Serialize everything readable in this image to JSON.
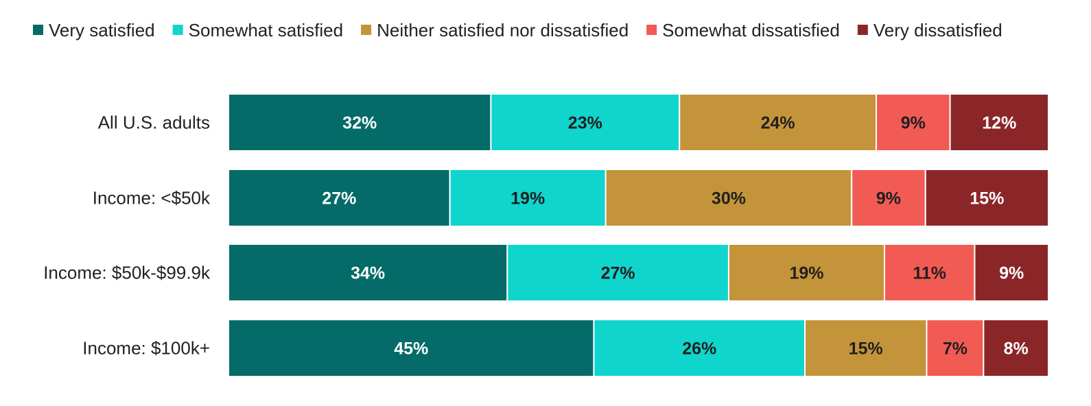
{
  "chart_data": {
    "type": "bar",
    "orientation": "horizontal",
    "stacked": true,
    "title": "",
    "xlabel": "",
    "ylabel": "",
    "categories": [
      "All U.S. adults",
      "Income: <$50k",
      "Income: $50k-$99.9k",
      "Income: $100k+"
    ],
    "series": [
      {
        "name": "Very satisfied",
        "color": "#046b68",
        "label_color": "#ffffff",
        "values": [
          32,
          27,
          34,
          45
        ]
      },
      {
        "name": "Somewhat satisfied",
        "color": "#10d5cc",
        "label_color": "#1f1f1f",
        "values": [
          23,
          19,
          27,
          26
        ]
      },
      {
        "name": "Neither satisfied nor dissatisfied",
        "color": "#c4943a",
        "label_color": "#1f1f1f",
        "values": [
          24,
          30,
          19,
          15
        ]
      },
      {
        "name": "Somewhat dissatisfied",
        "color": "#f25a54",
        "label_color": "#1f1f1f",
        "values": [
          9,
          9,
          11,
          7
        ]
      },
      {
        "name": "Very dissatisfied",
        "color": "#8b2628",
        "label_color": "#ffffff",
        "values": [
          12,
          15,
          9,
          8
        ]
      }
    ],
    "value_suffix": "%",
    "legend_position": "top",
    "grid": false
  }
}
